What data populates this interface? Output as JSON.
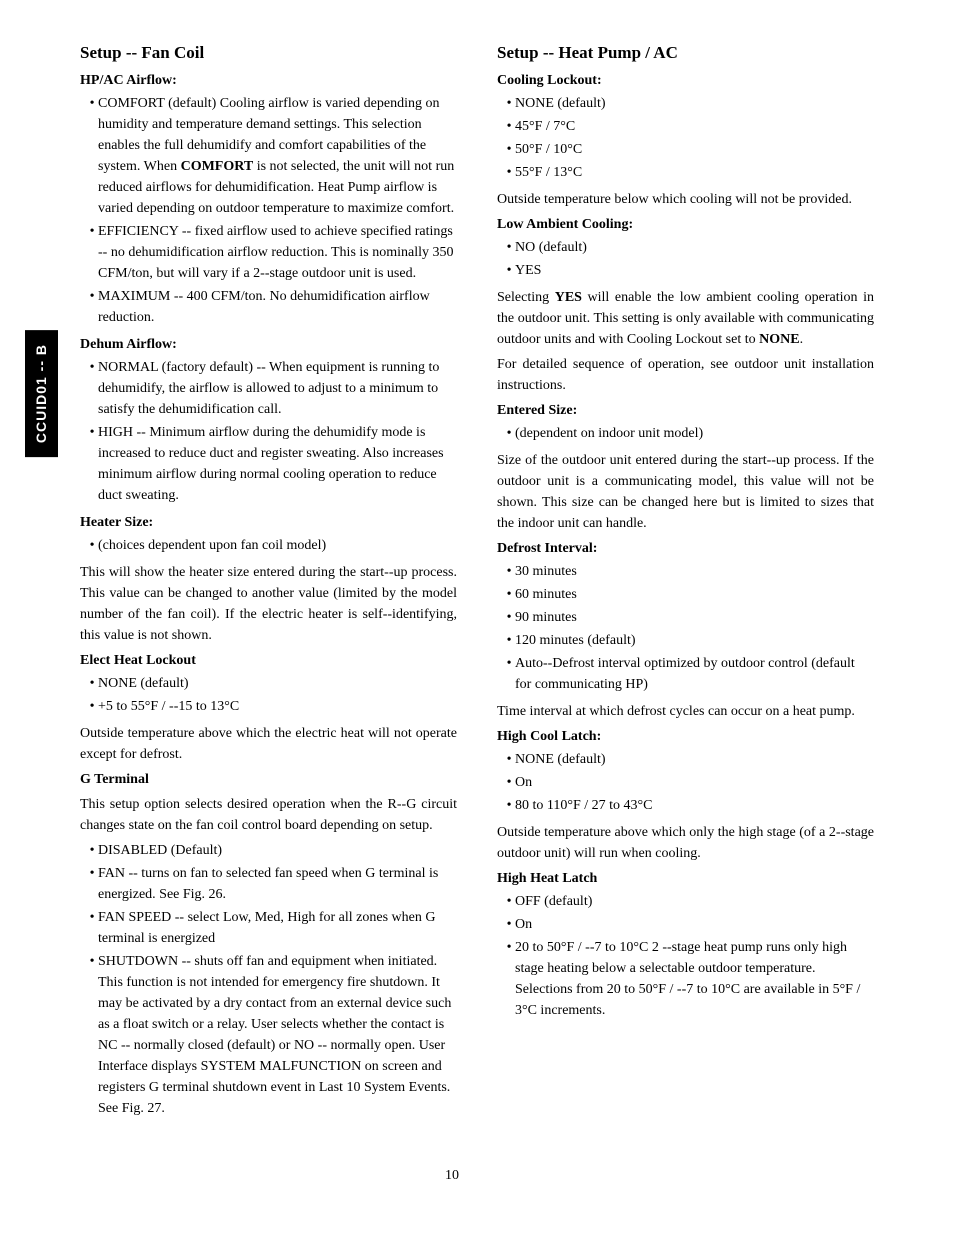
{
  "sideTab": "CCUID01 -- B",
  "pageNumber": "10",
  "left": {
    "heading": "Setup -- Fan Coil",
    "s1": {
      "title": "HP/AC Airflow:",
      "b1a": "COMFORT (default) Cooling airflow is varied depending on humidity and temperature demand settings. This selection enables the full dehumidify and comfort capabilities of the system. When ",
      "b1b": "COMFORT",
      "b1c": " is not selected, the unit will not run reduced airflows for dehumidification. Heat Pump airflow is varied depending on outdoor temperature to maximize comfort.",
      "b2": "EFFICIENCY -- fixed airflow used to achieve specified ratings -- no dehumidification airflow reduction. This is nominally 350 CFM/ton, but will vary if a 2--stage outdoor unit is used.",
      "b3": "MAXIMUM -- 400 CFM/ton. No dehumidification airflow reduction."
    },
    "s2": {
      "title": "Dehum Airflow:",
      "b1": "NORMAL (factory default) -- When equipment is running to dehumidify, the airflow is allowed to adjust to a minimum to satisfy the dehumidification call.",
      "b2": "HIGH -- Minimum airflow during the dehumidify mode is increased to reduce duct and register sweating. Also increases minimum airflow during normal cooling operation to reduce duct sweating."
    },
    "s3": {
      "title": "Heater Size:",
      "b1": "(choices dependent upon fan coil model)",
      "p1": "This will show the heater size entered during the start--up process. This value can be changed to another value (limited by the model number of the fan coil). If the electric heater is self--identifying, this value is not shown."
    },
    "s4": {
      "title": "Elect Heat Lockout",
      "b1": "NONE (default)",
      "b2": "+5 to 55°F / --15 to 13°C",
      "p1": "Outside temperature above which the electric heat will not operate except for defrost."
    },
    "s5": {
      "title": "G Terminal",
      "p1": "This setup option selects desired operation when the R--G circuit changes state on the fan coil control board depending on setup.",
      "b1": "DISABLED (Default)",
      "b2": "FAN -- turns on fan to selected fan speed when G terminal is energized. See Fig. 26.",
      "b3": "FAN SPEED -- select Low, Med, High for all zones when G terminal is energized",
      "b4": "SHUTDOWN -- shuts off fan and equipment when initiated. This function is not intended for emergency fire shutdown. It may be activated by a dry contact from an external device such as a float switch or a relay. User selects whether the contact is NC -- normally closed (default) or NO -- normally open. User Interface displays SYSTEM MALFUNCTION on screen and registers G terminal shutdown event in Last 10 System Events. See Fig. 27."
    }
  },
  "right": {
    "heading": "Setup -- Heat Pump / AC",
    "s1": {
      "title": "Cooling Lockout:",
      "b1": "NONE (default)",
      "b2": "45°F / 7°C",
      "b3": "50°F / 10°C",
      "b4": "55°F / 13°C",
      "p1": "Outside temperature below which cooling will not be provided."
    },
    "s2": {
      "title": "Low Ambient Cooling:",
      "b1": "NO (default)",
      "b2": "YES",
      "p1a": "Selecting ",
      "p1b": "YES",
      "p1c": " will enable the low ambient cooling operation in the outdoor unit. This setting is only available with communicating outdoor units and with Cooling Lockout set to ",
      "p1d": "NONE",
      "p1e": ".",
      "p2": "For detailed sequence of operation, see outdoor unit installation instructions."
    },
    "s3": {
      "title": "Entered Size:",
      "b1": "(dependent on indoor unit model)",
      "p1": "Size of the outdoor unit entered during the start--up process. If the outdoor unit is a communicating model, this value will not be shown. This size can be changed here but is limited to sizes that the indoor unit can handle."
    },
    "s4": {
      "title": "Defrost Interval:",
      "b1": "30 minutes",
      "b2": "60 minutes",
      "b3": "90 minutes",
      "b4": "120 minutes (default)",
      "b5": "Auto--Defrost interval optimized by outdoor control (default for communicating HP)",
      "p1": "Time interval at which defrost cycles can occur on a heat pump."
    },
    "s5": {
      "title": "High Cool Latch:",
      "b1": "NONE (default)",
      "b2": "On",
      "b3": "80 to 110°F / 27 to 43°C",
      "p1": "Outside temperature above which only the high stage (of a 2--stage outdoor unit) will run when cooling."
    },
    "s6": {
      "title": "High Heat Latch",
      "b1": "OFF (default)",
      "b2": "On",
      "b3": "20 to 50°F / --7 to 10°C 2 --stage heat pump runs only high stage heating below a selectable outdoor temperature. Selections from 20 to 50°F / --7 to 10°C are available in 5°F / 3°C increments."
    }
  }
}
